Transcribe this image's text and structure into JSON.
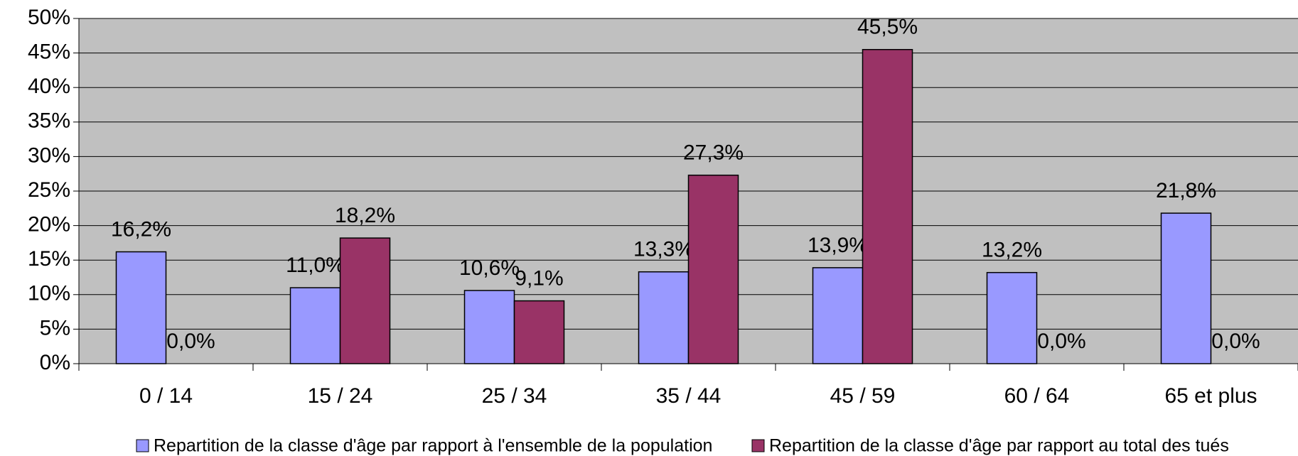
{
  "chart_data": {
    "type": "bar",
    "categories": [
      "0 / 14",
      "15 / 24",
      "25 / 34",
      "35 / 44",
      "45 / 59",
      "60 / 64",
      "65 et plus"
    ],
    "series": [
      {
        "name": "Repartition de la classe d'âge par rapport à l'ensemble de la population",
        "color": "#9999ff",
        "values": [
          16.2,
          11.0,
          10.6,
          13.3,
          13.9,
          13.2,
          21.8
        ],
        "value_labels": [
          "16,2%",
          "11,0%",
          "10,6%",
          "13,3%",
          "13,9%",
          "13,2%",
          "21,8%"
        ]
      },
      {
        "name": "Repartition de la classe d'âge par rapport au total des tués",
        "color": "#993366",
        "values": [
          0.0,
          18.2,
          9.1,
          27.3,
          45.5,
          0.0,
          0.0
        ],
        "value_labels": [
          "0,0%",
          "18,2%",
          "9,1%",
          "27,3%",
          "45,5%",
          "0,0%",
          "0,0%"
        ]
      }
    ],
    "ylim": [
      0,
      50
    ],
    "yticks": [
      {
        "value": 0,
        "label": "0%"
      },
      {
        "value": 5,
        "label": "5%"
      },
      {
        "value": 10,
        "label": "10%"
      },
      {
        "value": 15,
        "label": "15%"
      },
      {
        "value": 20,
        "label": "20%"
      },
      {
        "value": 25,
        "label": "25%"
      },
      {
        "value": 30,
        "label": "30%"
      },
      {
        "value": 35,
        "label": "35%"
      },
      {
        "value": 40,
        "label": "40%"
      },
      {
        "value": 45,
        "label": "45%"
      },
      {
        "value": 50,
        "label": "50%"
      }
    ],
    "grid": true,
    "plot_background": "#c0c0c0",
    "legend": "bottom"
  }
}
